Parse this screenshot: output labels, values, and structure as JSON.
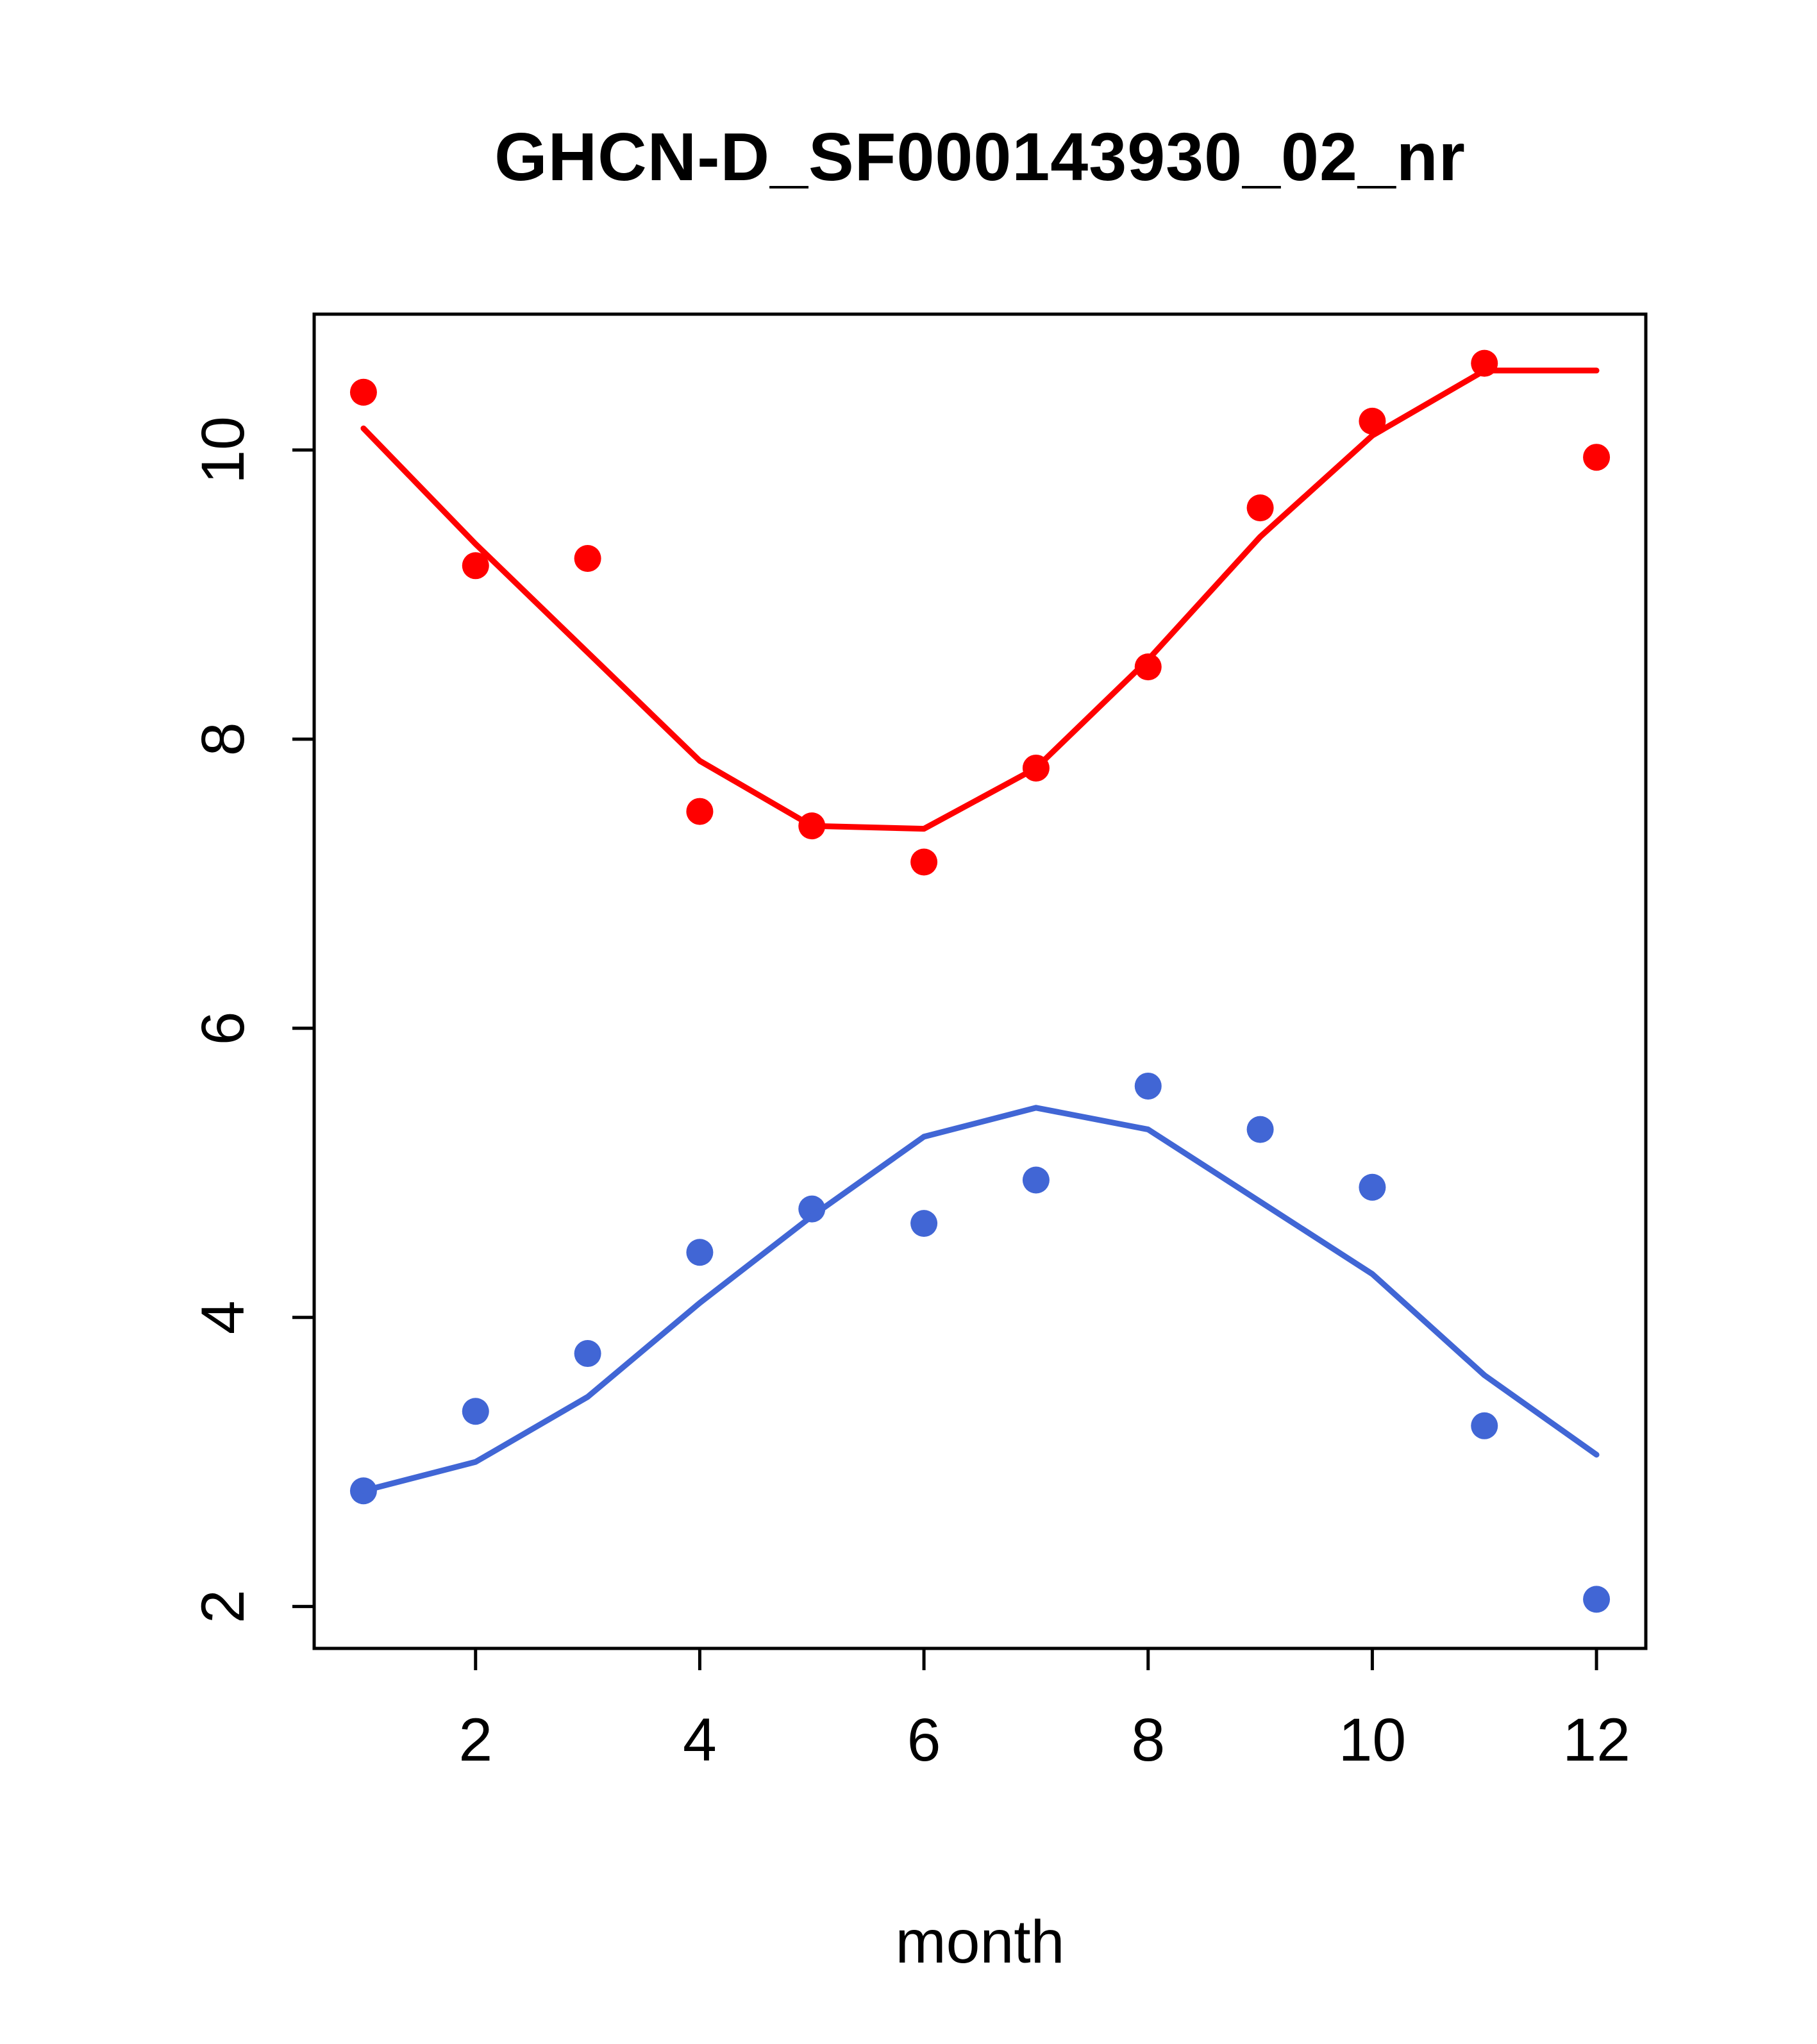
{
  "chart_data": {
    "type": "line",
    "title": "GHCN-D_SF000143930_02_nr",
    "xlabel": "month",
    "ylabel": "",
    "x": [
      1,
      2,
      3,
      4,
      5,
      6,
      7,
      8,
      9,
      10,
      11,
      12
    ],
    "xlim": [
      0.56,
      12.44
    ],
    "ylim": [
      1.71,
      10.94
    ],
    "x_ticks": [
      2,
      4,
      6,
      8,
      10,
      12
    ],
    "y_ticks": [
      2,
      4,
      6,
      8,
      10
    ],
    "grid": false,
    "legend": "none",
    "colors": {
      "red": "#ff0000",
      "blue": "#4166d5"
    },
    "series": [
      {
        "name": "red-scatter",
        "draw": "points",
        "color": "#ff0000",
        "values": [
          10.4,
          9.2,
          9.25,
          7.5,
          7.4,
          7.15,
          7.8,
          8.5,
          9.6,
          10.2,
          10.6,
          9.95
        ]
      },
      {
        "name": "red-trend-line",
        "draw": "line",
        "color": "#ff0000",
        "values": [
          10.15,
          9.35,
          8.6,
          7.85,
          7.4,
          7.38,
          7.8,
          8.55,
          9.4,
          10.1,
          10.55,
          10.55
        ]
      },
      {
        "name": "blue-scatter",
        "draw": "points",
        "color": "#4166d5",
        "values": [
          2.8,
          3.35,
          3.75,
          4.45,
          4.75,
          4.65,
          4.95,
          5.6,
          5.3,
          4.9,
          3.25,
          2.05
        ]
      },
      {
        "name": "blue-trend-line",
        "draw": "line",
        "color": "#4166d5",
        "values": [
          2.8,
          3.0,
          3.45,
          4.1,
          4.7,
          5.25,
          5.45,
          5.3,
          4.8,
          4.3,
          3.6,
          3.05
        ]
      }
    ]
  },
  "layout_labels": {
    "title": "GHCN-D_SF000143930_02_nr",
    "xlabel": "month"
  }
}
